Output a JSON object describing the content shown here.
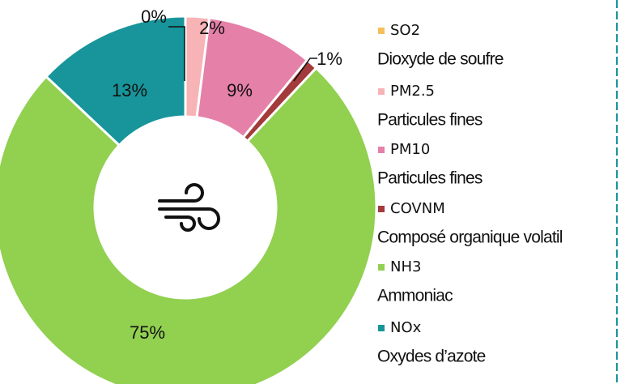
{
  "chart_data": {
    "type": "donut",
    "categories": [
      "SO2",
      "PM2.5",
      "PM10",
      "COVNM",
      "NH3",
      "NOx"
    ],
    "descriptions": [
      "Dioxyde de soufre",
      "Particules fines",
      "Particules fines",
      "Composé organique volatil",
      "Ammoniac",
      "Oxydes d’azote"
    ],
    "values": [
      0,
      2,
      9,
      1,
      75,
      13
    ],
    "value_labels": [
      "0%",
      "2%",
      "9%",
      "1%",
      "75%",
      "13%"
    ],
    "colors": [
      "#f5c05a",
      "#f7b3b5",
      "#e580a8",
      "#a33a3b",
      "#92d050",
      "#17959a"
    ]
  }
}
